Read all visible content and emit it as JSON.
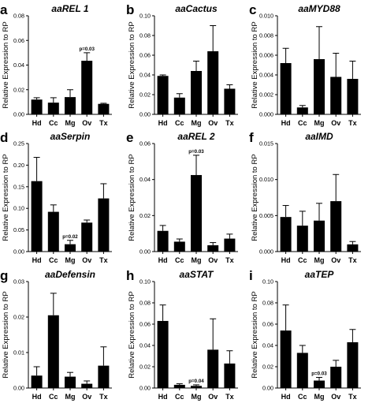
{
  "chart_data": [
    {
      "letter": "a",
      "title": "aaREL 1",
      "type": "bar",
      "ylabel": "Relative Expression to RP",
      "categories": [
        "Hd",
        "Cc",
        "Mg",
        "Ov",
        "Tx"
      ],
      "values": [
        0.012,
        0.0095,
        0.014,
        0.0435,
        0.0085
      ],
      "errors": [
        0.0015,
        0.004,
        0.006,
        0.0065,
        0.0005
      ],
      "ylim": [
        0,
        0.08
      ],
      "ticks": [
        "0.00",
        "0.02",
        "0.04",
        "0.06",
        "0.08"
      ],
      "annotation": {
        "text": "p=0.03",
        "category": "Ov"
      }
    },
    {
      "letter": "b",
      "title": "aaCactus",
      "type": "bar",
      "ylabel": "Relative Expression to RP",
      "categories": [
        "Hd",
        "Cc",
        "Mg",
        "Ov",
        "Tx"
      ],
      "values": [
        0.039,
        0.017,
        0.044,
        0.064,
        0.026
      ],
      "errors": [
        0.001,
        0.004,
        0.01,
        0.026,
        0.004
      ],
      "ylim": [
        0,
        0.1
      ],
      "ticks": [
        "0.00",
        "0.02",
        "0.04",
        "0.06",
        "0.08",
        "0.10"
      ]
    },
    {
      "letter": "c",
      "title": "aaMYD88",
      "type": "bar",
      "ylabel": "Relative Expression to RP",
      "categories": [
        "Hd",
        "Cc",
        "Mg",
        "Ov",
        "Tx"
      ],
      "values": [
        0.0052,
        0.0007,
        0.0056,
        0.0038,
        0.0036
      ],
      "errors": [
        0.0015,
        0.0002,
        0.0033,
        0.0024,
        0.0018
      ],
      "ylim": [
        0,
        0.01
      ],
      "ticks": [
        "0.000",
        "0.002",
        "0.004",
        "0.006",
        "0.008",
        "0.010"
      ]
    },
    {
      "letter": "d",
      "title": "aaSerpin",
      "type": "bar",
      "ylabel": "Relative Expression to RP",
      "categories": [
        "Hd",
        "Cc",
        "Mg",
        "Ov",
        "Tx"
      ],
      "values": [
        0.163,
        0.092,
        0.017,
        0.067,
        0.123
      ],
      "errors": [
        0.055,
        0.016,
        0.009,
        0.006,
        0.034
      ],
      "ylim": [
        0,
        0.25
      ],
      "ticks": [
        "0.00",
        "0.05",
        "0.10",
        "0.15",
        "0.20",
        "0.25"
      ],
      "annotation": {
        "text": "p=0.02",
        "category": "Mg"
      }
    },
    {
      "letter": "e",
      "title": "aaREL 2",
      "type": "bar",
      "ylabel": "Relative Expression to RP",
      "categories": [
        "Hd",
        "Cc",
        "Mg",
        "Ov",
        "Tx"
      ],
      "values": [
        0.0115,
        0.0055,
        0.0425,
        0.0035,
        0.0072
      ],
      "errors": [
        0.003,
        0.0015,
        0.011,
        0.0015,
        0.0025
      ],
      "ylim": [
        0,
        0.06
      ],
      "ticks": [
        "0.00",
        "0.02",
        "0.04",
        "0.06"
      ],
      "annotation": {
        "text": "p=0.03",
        "category": "Mg"
      }
    },
    {
      "letter": "f",
      "title": "aaIMD",
      "type": "bar",
      "ylabel": "Relative Expression to RP",
      "categories": [
        "Hd",
        "Cc",
        "Mg",
        "Ov",
        "Tx"
      ],
      "values": [
        0.0048,
        0.0036,
        0.0043,
        0.007,
        0.001
      ],
      "errors": [
        0.0016,
        0.002,
        0.0024,
        0.0037,
        0.0004
      ],
      "ylim": [
        0,
        0.015
      ],
      "ticks": [
        "0.000",
        "0.005",
        "0.010",
        "0.015"
      ]
    },
    {
      "letter": "g",
      "title": "aaDefensin",
      "type": "bar",
      "ylabel": "Relative Expression to RP",
      "categories": [
        "Hd",
        "Cc",
        "Mg",
        "Ov",
        "Tx"
      ],
      "values": [
        0.0035,
        0.0205,
        0.0032,
        0.0012,
        0.0063
      ],
      "errors": [
        0.0025,
        0.0062,
        0.0012,
        0.0008,
        0.0053
      ],
      "ylim": [
        0,
        0.03
      ],
      "ticks": [
        "0.00",
        "0.01",
        "0.02",
        "0.03"
      ]
    },
    {
      "letter": "h",
      "title": "aaSTAT",
      "type": "bar",
      "ylabel": "Relative Expression to RP",
      "categories": [
        "Hd",
        "Cc",
        "Mg",
        "Ov",
        "Tx"
      ],
      "values": [
        0.063,
        0.003,
        0.002,
        0.036,
        0.023
      ],
      "errors": [
        0.015,
        0.001,
        0.001,
        0.029,
        0.012
      ],
      "ylim": [
        0,
        0.1
      ],
      "ticks": [
        "0.00",
        "0.02",
        "0.04",
        "0.06",
        "0.08",
        "0.10"
      ],
      "annotation": {
        "text": "p=0.04",
        "category": "Mg"
      }
    },
    {
      "letter": "i",
      "title": "aaTEP",
      "type": "bar",
      "ylabel": "Relative Expression to RP",
      "categories": [
        "Hd",
        "Cc",
        "Mg",
        "Ov",
        "Tx"
      ],
      "values": [
        0.054,
        0.033,
        0.007,
        0.02,
        0.043
      ],
      "errors": [
        0.024,
        0.007,
        0.003,
        0.006,
        0.012
      ],
      "ylim": [
        0,
        0.1
      ],
      "ticks": [
        "0.00",
        "0.02",
        "0.04",
        "0.06",
        "0.08",
        "0.10"
      ],
      "annotation": {
        "text": "p=0.03",
        "category": "Mg"
      }
    }
  ]
}
